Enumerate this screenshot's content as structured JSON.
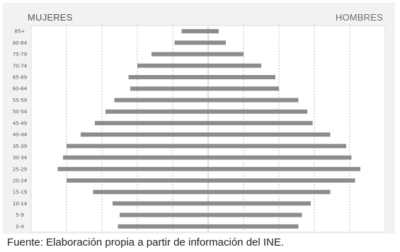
{
  "chart_data": {
    "type": "bar",
    "orientation": "horizontal-pyramid",
    "left_label": "MUJERES",
    "right_label": "HOMBRES",
    "categories": [
      "85+",
      "80-84",
      "75-79",
      "70-74",
      "65-69",
      "60-64",
      "55-59",
      "50-54",
      "45-49",
      "40-44",
      "35-39",
      "30-34",
      "25-29",
      "20-24",
      "15-19",
      "10-14",
      "5-9",
      "0-4"
    ],
    "series": [
      {
        "name": "MUJERES",
        "color": "#8c8c8c",
        "values": [
          1.5,
          1.9,
          3.2,
          4.0,
          4.5,
          4.4,
          5.3,
          5.8,
          6.4,
          7.2,
          8.0,
          8.2,
          8.5,
          8.0,
          6.5,
          5.4,
          5.0,
          5.1
        ]
      },
      {
        "name": "HOMBRES",
        "color": "#8c8c8c",
        "values": [
          0.6,
          1.0,
          2.0,
          3.0,
          3.8,
          4.0,
          5.1,
          5.6,
          5.9,
          6.9,
          7.8,
          8.1,
          8.6,
          8.3,
          6.9,
          5.8,
          5.3,
          5.1
        ]
      }
    ],
    "xlim": [
      -10,
      10
    ],
    "grid": true,
    "source": "Fuente: Elaboración propia a partir de información del INE."
  }
}
